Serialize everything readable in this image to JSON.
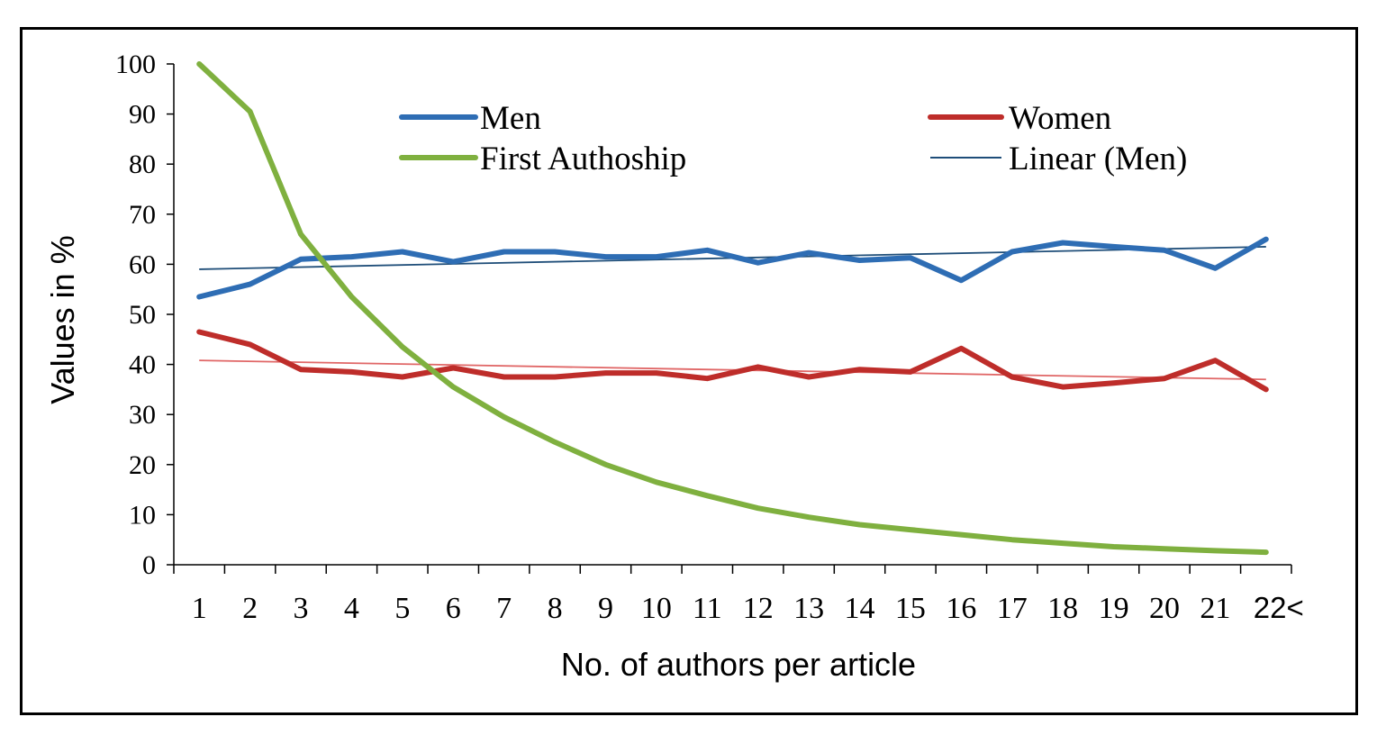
{
  "chart_data": {
    "type": "line",
    "xlabel": "No. of authors per article",
    "ylabel": "Values in %",
    "ylim": [
      0,
      100
    ],
    "yticks": [
      0,
      10,
      20,
      30,
      40,
      50,
      60,
      70,
      80,
      90,
      100
    ],
    "categories": [
      "1",
      "2",
      "3",
      "4",
      "5",
      "6",
      "7",
      "8",
      "9",
      "10",
      "11",
      "12",
      "13",
      "14",
      "15",
      "16",
      "17",
      "18",
      "19",
      "20",
      "21",
      "22<"
    ],
    "grid": false,
    "legend_position": "top",
    "series": [
      {
        "name": "Men",
        "color": "#2E6DB4",
        "values": [
          53.5,
          56,
          61,
          61.5,
          62.5,
          60.5,
          62.5,
          62.5,
          61.5,
          61.5,
          62.8,
          60.3,
          62.3,
          60.8,
          61.3,
          56.8,
          62.5,
          64.3,
          63.5,
          62.8,
          59.2,
          65
        ]
      },
      {
        "name": "Women",
        "color": "#BE2D2A",
        "values": [
          46.5,
          44,
          39,
          38.5,
          37.5,
          39.3,
          37.5,
          37.5,
          38.3,
          38.3,
          37.2,
          39.5,
          37.5,
          39,
          38.5,
          43.2,
          37.5,
          35.5,
          36.3,
          37.2,
          40.8,
          35
        ]
      },
      {
        "name": "First Authoship",
        "color": "#7FB03F",
        "values": [
          100,
          90.5,
          66,
          53.5,
          43.5,
          35.5,
          29.5,
          24.5,
          20,
          16.5,
          13.8,
          11.3,
          9.5,
          8,
          7,
          6,
          5,
          4.3,
          3.6,
          3.2,
          2.8,
          2.5
        ]
      }
    ],
    "trendlines": [
      {
        "name": "Linear (Men)",
        "color": "#1F4E79",
        "start": 59,
        "end": 63.5
      },
      {
        "color": "#E06666",
        "start": 40.8,
        "end": 37
      }
    ]
  }
}
